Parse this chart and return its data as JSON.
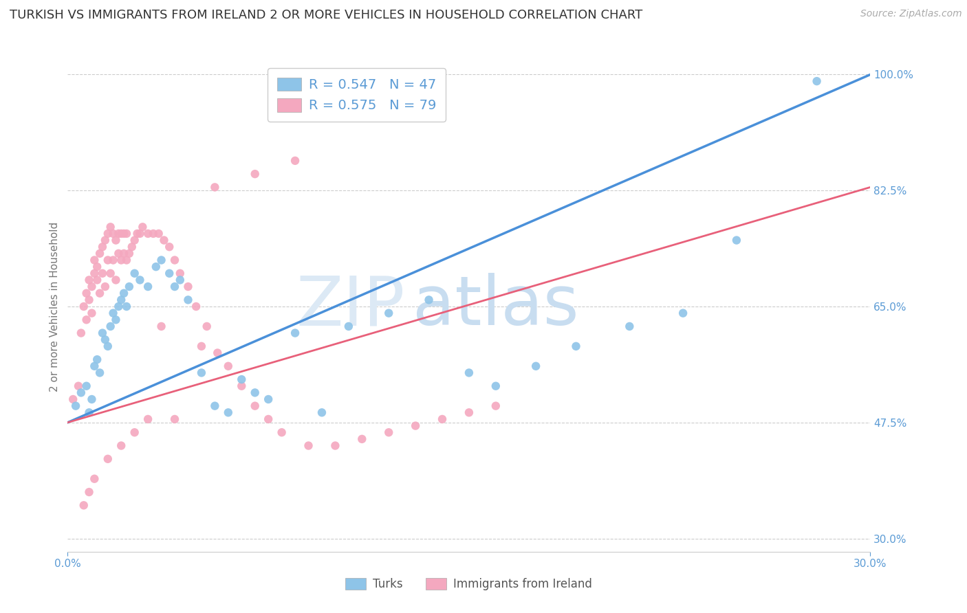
{
  "title": "TURKISH VS IMMIGRANTS FROM IRELAND 2 OR MORE VEHICLES IN HOUSEHOLD CORRELATION CHART",
  "source": "Source: ZipAtlas.com",
  "ylabel": "2 or more Vehicles in Household",
  "turks_R": "0.547",
  "turks_N": "47",
  "ireland_R": "0.575",
  "ireland_N": "79",
  "turks_color": "#8ec4e8",
  "ireland_color": "#f4a8bf",
  "turks_line_color": "#4a90d9",
  "ireland_line_color": "#e8607a",
  "watermark_zip": "ZIP",
  "watermark_atlas": "atlas",
  "background_color": "#ffffff",
  "title_color": "#333333",
  "axis_label_color": "#5b9bd5",
  "grid_color": "#cccccc",
  "turks_scatter_x": [
    0.003,
    0.005,
    0.007,
    0.008,
    0.009,
    0.01,
    0.011,
    0.012,
    0.013,
    0.014,
    0.015,
    0.016,
    0.017,
    0.018,
    0.019,
    0.02,
    0.021,
    0.022,
    0.023,
    0.025,
    0.027,
    0.03,
    0.033,
    0.035,
    0.038,
    0.04,
    0.042,
    0.045,
    0.05,
    0.055,
    0.06,
    0.065,
    0.07,
    0.075,
    0.085,
    0.095,
    0.105,
    0.12,
    0.135,
    0.15,
    0.16,
    0.175,
    0.19,
    0.21,
    0.23,
    0.25,
    0.28
  ],
  "turks_scatter_y": [
    0.5,
    0.52,
    0.53,
    0.49,
    0.51,
    0.56,
    0.57,
    0.55,
    0.61,
    0.6,
    0.59,
    0.62,
    0.64,
    0.63,
    0.65,
    0.66,
    0.67,
    0.65,
    0.68,
    0.7,
    0.69,
    0.68,
    0.71,
    0.72,
    0.7,
    0.68,
    0.69,
    0.66,
    0.55,
    0.5,
    0.49,
    0.54,
    0.52,
    0.51,
    0.61,
    0.49,
    0.62,
    0.64,
    0.66,
    0.55,
    0.53,
    0.56,
    0.59,
    0.62,
    0.64,
    0.75,
    0.99
  ],
  "ireland_scatter_x": [
    0.002,
    0.004,
    0.005,
    0.006,
    0.007,
    0.007,
    0.008,
    0.008,
    0.009,
    0.009,
    0.01,
    0.01,
    0.011,
    0.011,
    0.012,
    0.012,
    0.013,
    0.013,
    0.014,
    0.014,
    0.015,
    0.015,
    0.016,
    0.016,
    0.017,
    0.017,
    0.018,
    0.018,
    0.019,
    0.019,
    0.02,
    0.02,
    0.021,
    0.021,
    0.022,
    0.022,
    0.023,
    0.024,
    0.025,
    0.026,
    0.027,
    0.028,
    0.03,
    0.032,
    0.034,
    0.036,
    0.038,
    0.04,
    0.042,
    0.045,
    0.048,
    0.052,
    0.056,
    0.06,
    0.065,
    0.07,
    0.075,
    0.08,
    0.09,
    0.1,
    0.11,
    0.12,
    0.13,
    0.14,
    0.15,
    0.16,
    0.055,
    0.07,
    0.085,
    0.04,
    0.03,
    0.025,
    0.02,
    0.015,
    0.01,
    0.008,
    0.006,
    0.035,
    0.05
  ],
  "ireland_scatter_y": [
    0.51,
    0.53,
    0.61,
    0.65,
    0.67,
    0.63,
    0.66,
    0.69,
    0.68,
    0.64,
    0.7,
    0.72,
    0.71,
    0.69,
    0.73,
    0.67,
    0.74,
    0.7,
    0.75,
    0.68,
    0.76,
    0.72,
    0.77,
    0.7,
    0.76,
    0.72,
    0.75,
    0.69,
    0.76,
    0.73,
    0.76,
    0.72,
    0.76,
    0.73,
    0.76,
    0.72,
    0.73,
    0.74,
    0.75,
    0.76,
    0.76,
    0.77,
    0.76,
    0.76,
    0.76,
    0.75,
    0.74,
    0.72,
    0.7,
    0.68,
    0.65,
    0.62,
    0.58,
    0.56,
    0.53,
    0.5,
    0.48,
    0.46,
    0.44,
    0.44,
    0.45,
    0.46,
    0.47,
    0.48,
    0.49,
    0.5,
    0.83,
    0.85,
    0.87,
    0.48,
    0.48,
    0.46,
    0.44,
    0.42,
    0.39,
    0.37,
    0.35,
    0.62,
    0.59
  ],
  "xlim": [
    0.0,
    0.3
  ],
  "ylim": [
    0.28,
    1.02
  ],
  "y_tick_vals": [
    0.3,
    0.475,
    0.65,
    0.825,
    1.0
  ],
  "y_tick_labels": [
    "30.0%",
    "47.5%",
    "65.0%",
    "82.5%",
    "100.0%"
  ],
  "x_tick_vals": [
    0.0,
    0.3
  ],
  "x_tick_labels": [
    "0.0%",
    "30.0%"
  ]
}
